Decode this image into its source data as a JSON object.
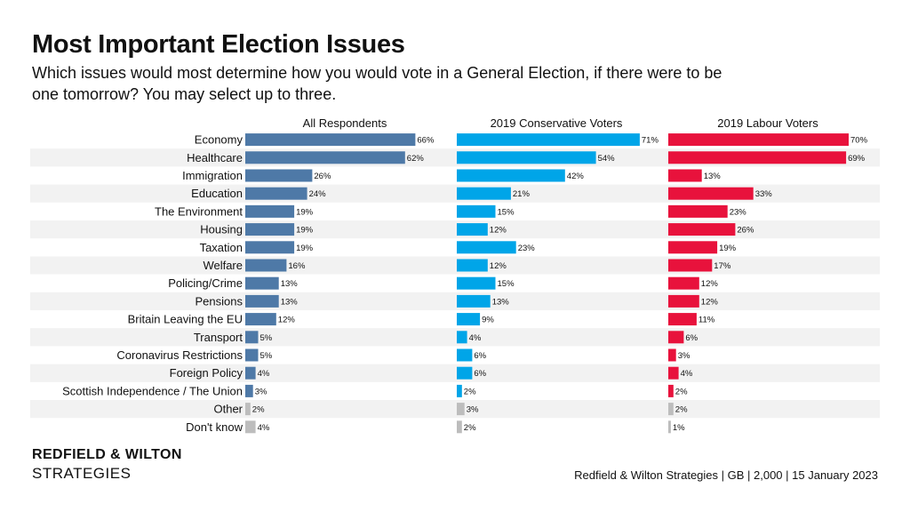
{
  "title": "Most Important Election Issues",
  "subtitle": "Which issues would most determine how you would vote in a General Election, if there were to be one tomorrow? You may select up to three.",
  "brand": {
    "line1": "REDFIELD & WILTON",
    "line2": "STRATEGIES"
  },
  "source": "Redfield & Wilton Strategies | GB | 2,000 | 15 January 2023",
  "colors": {
    "all": "#4e79a7",
    "conservative": "#00a5e8",
    "labour": "#e8123c",
    "neutral": "#bdbdbd",
    "stripe": "#f2f2f2"
  },
  "chart_data": {
    "type": "bar",
    "orientation": "horizontal",
    "unit": "%",
    "categories": [
      "Economy",
      "Healthcare",
      "Immigration",
      "Education",
      "The Environment",
      "Housing",
      "Taxation",
      "Welfare",
      "Policing/Crime",
      "Pensions",
      "Britain Leaving the EU",
      "Transport",
      "Coronavirus Restrictions",
      "Foreign Policy",
      "Scottish Independence / The Union",
      "Other",
      "Don't know"
    ],
    "neutral_categories": [
      "Other",
      "Don't know"
    ],
    "series": [
      {
        "name": "All Respondents",
        "values": [
          66,
          62,
          26,
          24,
          19,
          19,
          19,
          16,
          13,
          13,
          12,
          5,
          5,
          4,
          3,
          2,
          4
        ]
      },
      {
        "name": "2019 Conservative Voters",
        "values": [
          71,
          54,
          42,
          21,
          15,
          12,
          23,
          12,
          15,
          13,
          9,
          4,
          6,
          6,
          2,
          3,
          2
        ]
      },
      {
        "name": "2019 Labour Voters",
        "values": [
          70,
          69,
          13,
          33,
          23,
          26,
          19,
          17,
          12,
          12,
          11,
          6,
          3,
          4,
          2,
          2,
          1
        ]
      }
    ],
    "xlim": [
      0,
      75
    ],
    "grid": false,
    "legend": "none"
  }
}
